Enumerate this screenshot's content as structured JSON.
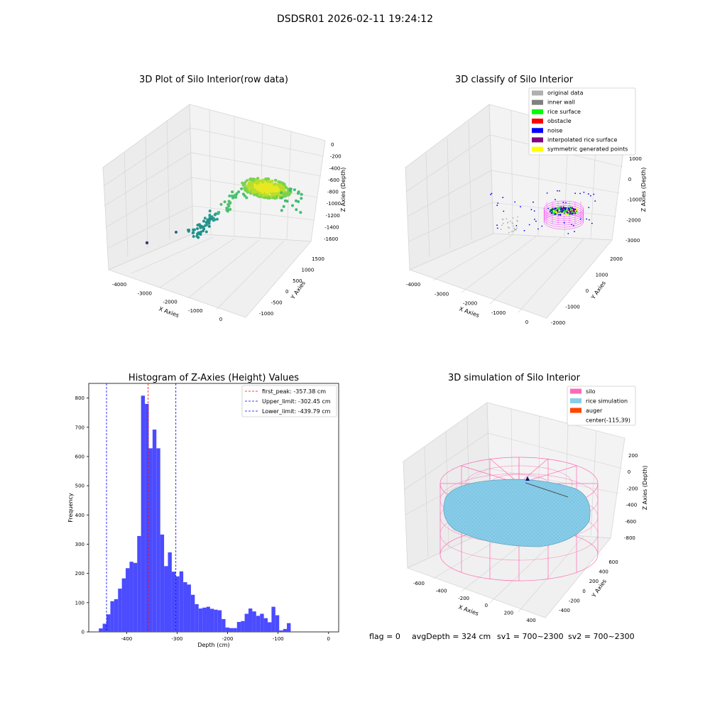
{
  "suptitle": "DSDSR01 2026-02-11 19:24:12",
  "status": {
    "flag": "flag = 0",
    "avg_depth": "avgDepth = 324 cm",
    "sv1": "sv1 = 700~2300",
    "sv2": "sv2 = 700~2300"
  },
  "chart_data": [
    {
      "type": "scatter3d",
      "title": "3D Plot of Silo Interior(row data)",
      "xlabel": "X Axies",
      "ylabel": "Y Axies",
      "zlabel": "Z Axies (Depth)",
      "xticks": [
        "-4000",
        "-3000",
        "-2000",
        "-1000",
        "0"
      ],
      "yticks": [
        "-1000",
        "-500",
        "0",
        "500",
        "1000",
        "1500"
      ],
      "zticks": [
        "0",
        "-200",
        "-400",
        "-600",
        "-800",
        "-1000",
        "-1200",
        "-1400",
        "-1600"
      ]
    },
    {
      "type": "scatter3d",
      "title": "3D classify of Silo Interior",
      "xlabel": "X Axies",
      "ylabel": "Y Axies",
      "zlabel": "Z Axies (Depth)",
      "xticks": [
        "-4000",
        "-3000",
        "-2000",
        "-1000",
        "0"
      ],
      "yticks": [
        "-2000",
        "-1000",
        "0",
        "1000",
        "2000"
      ],
      "zticks": [
        "1000",
        "0",
        "-1000",
        "-2000",
        "-3000"
      ],
      "legend_position": "top-right",
      "legend": [
        {
          "label": "original data",
          "color": "#b0b0b0"
        },
        {
          "label": "inner wall",
          "color": "#808080"
        },
        {
          "label": "rice surface",
          "color": "#00ff00"
        },
        {
          "label": "obstacle",
          "color": "#ff0000"
        },
        {
          "label": "noise",
          "color": "#0000ff"
        },
        {
          "label": "interpolated rice surface",
          "color": "#800080"
        },
        {
          "label": "symmetric generated points",
          "color": "#ffff00"
        }
      ]
    },
    {
      "type": "bar",
      "title": "Histogram of Z-Axies (Height) Values",
      "xlabel": "Depth (cm)",
      "ylabel": "Frequency",
      "bar_color": "#4b4bff",
      "xlim": [
        -475,
        20
      ],
      "ylim": [
        0,
        850
      ],
      "xticks": [
        "-400",
        "-300",
        "-200",
        "-100",
        "0"
      ],
      "yticks": [
        "0",
        "100",
        "200",
        "300",
        "400",
        "500",
        "600",
        "700",
        "800"
      ],
      "bin_start": -455,
      "bin_width": 7.6,
      "values": [
        12,
        28,
        60,
        105,
        112,
        148,
        183,
        218,
        240,
        236,
        328,
        808,
        780,
        628,
        692,
        628,
        333,
        225,
        272,
        206,
        190,
        207,
        170,
        162,
        127,
        95,
        80,
        83,
        86,
        79,
        76,
        74,
        44,
        15,
        13,
        13,
        34,
        37,
        62,
        80,
        70,
        55,
        62,
        47,
        33,
        86,
        57,
        5,
        10,
        30
      ],
      "vlines": [
        {
          "x": -357.38,
          "color": "#ff0000",
          "label": "first_peak: -357.38 cm"
        },
        {
          "x": -302.45,
          "color": "#0000ff",
          "label": "Upper_limit: -302.45 cm"
        },
        {
          "x": -439.79,
          "color": "#0000ff",
          "label": "Lower_limit: -439.79 cm"
        }
      ],
      "legend_position": "top-right"
    },
    {
      "type": "surface3d",
      "title": "3D simulation of Silo Interior",
      "xlabel": "X Axies",
      "ylabel": "Y Axies",
      "zlabel": "Z Axies (Depth)",
      "xticks": [
        "-600",
        "-400",
        "-200",
        "0",
        "200",
        "400"
      ],
      "yticks": [
        "-400",
        "-200",
        "0",
        "200",
        "400",
        "600"
      ],
      "zticks": [
        "200",
        "0",
        "-200",
        "-400",
        "-600",
        "-800"
      ],
      "legend_position": "top-right",
      "legend": [
        {
          "label": "silo",
          "color": "#ff69b4"
        },
        {
          "label": "rice simulation",
          "color": "#87ceeb"
        },
        {
          "label": "auger",
          "color": "#ff4500"
        },
        {
          "label": "center(-115,39)",
          "color": ""
        }
      ]
    }
  ]
}
